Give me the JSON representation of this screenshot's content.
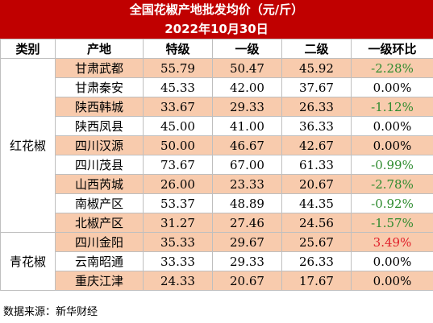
{
  "title": "全国花椒产地批发均价（元/斤）",
  "date": "2022年10月30日",
  "headers": [
    "类别",
    "产地",
    "特级",
    "一级",
    "二级",
    "一级环比"
  ],
  "groups": [
    {
      "category": "红花椒",
      "rows": [
        {
          "origin": "甘肃武都",
          "special": "55.79",
          "first": "50.47",
          "second": "45.92",
          "change": "-2.28%"
        },
        {
          "origin": "甘肃秦安",
          "special": "45.33",
          "first": "42.00",
          "second": "37.67",
          "change": "0.00%"
        },
        {
          "origin": "陕西韩城",
          "special": "33.67",
          "first": "29.33",
          "second": "26.33",
          "change": "-1.12%"
        },
        {
          "origin": "陕西凤县",
          "special": "45.00",
          "first": "41.00",
          "second": "36.33",
          "change": "0.00%"
        },
        {
          "origin": "四川汉源",
          "special": "50.00",
          "first": "46.67",
          "second": "42.67",
          "change": "0.00%"
        },
        {
          "origin": "四川茂县",
          "special": "73.67",
          "first": "67.00",
          "second": "61.33",
          "change": "-0.99%"
        },
        {
          "origin": "山西芮城",
          "special": "26.00",
          "first": "23.33",
          "second": "20.67",
          "change": "-2.78%"
        },
        {
          "origin": "南椒产区",
          "special": "53.37",
          "first": "48.89",
          "second": "44.35",
          "change": "-0.92%"
        },
        {
          "origin": "北椒产区",
          "special": "31.27",
          "first": "27.46",
          "second": "24.56",
          "change": "-1.57%"
        }
      ]
    },
    {
      "category": "青花椒",
      "rows": [
        {
          "origin": "四川金阳",
          "special": "35.33",
          "first": "29.67",
          "second": "25.67",
          "change": "3.49%"
        },
        {
          "origin": "云南昭通",
          "special": "33.33",
          "first": "29.33",
          "second": "26.33",
          "change": "0.00%"
        },
        {
          "origin": "重庆江津",
          "special": "24.33",
          "first": "20.67",
          "second": "17.67",
          "change": "0.00%"
        }
      ]
    }
  ],
  "source": "数据来源：新华财经",
  "colors": {
    "title_bg": "#c00000",
    "row_shade": "#f8cbad",
    "negative": "#2e8b2e",
    "positive": "#e0202a"
  }
}
